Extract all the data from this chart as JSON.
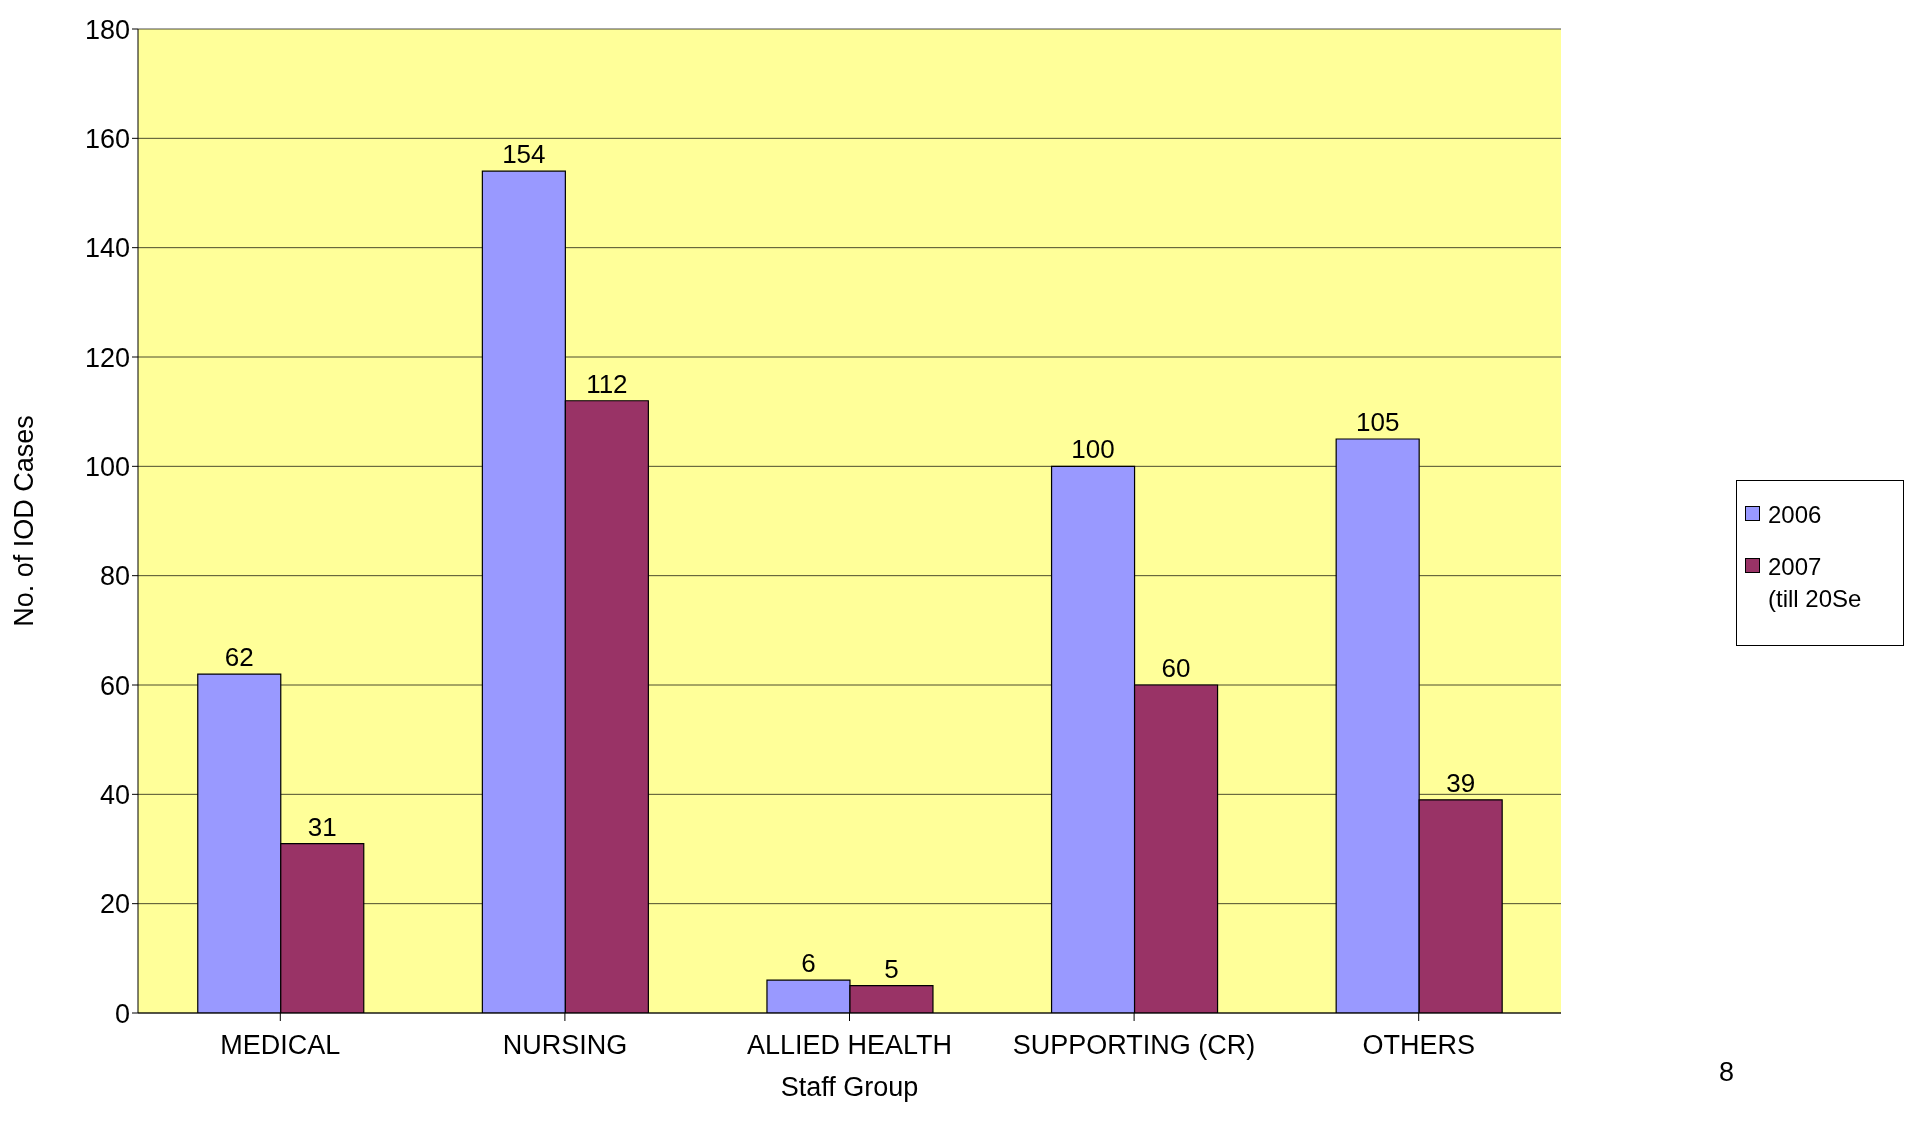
{
  "chart_data": {
    "type": "bar",
    "xlabel": "Staff Group",
    "ylabel": "No. of IOD Cases",
    "categories": [
      "MEDICAL",
      "NURSING",
      "ALLIED HEALTH",
      "SUPPORTING (CR)",
      "OTHERS"
    ],
    "series": [
      {
        "name": "2006",
        "color": "#9999ff",
        "values": [
          62,
          154,
          6,
          100,
          105
        ]
      },
      {
        "name": "2007 (till 20Se",
        "color": "#993366",
        "values": [
          31,
          112,
          5,
          60,
          39
        ]
      }
    ],
    "ylim": [
      0,
      180
    ],
    "yticks": [
      0,
      20,
      40,
      60,
      80,
      100,
      120,
      140,
      160,
      180
    ],
    "grid": "y",
    "legend": "right",
    "data_labels": true,
    "annotations": [
      "8"
    ]
  }
}
